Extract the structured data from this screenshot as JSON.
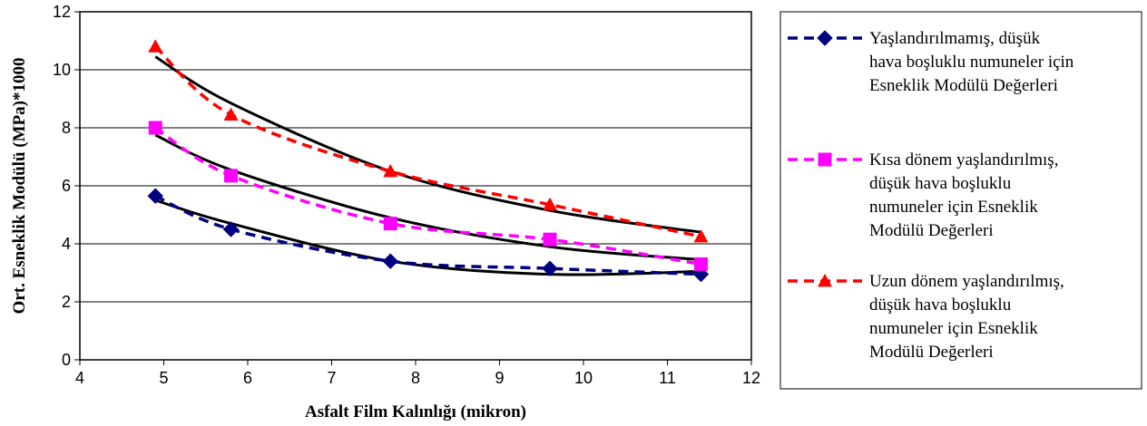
{
  "chart_data": {
    "type": "line",
    "title": "",
    "xlabel": "Asfalt Film Kalınlığı (mikron)",
    "ylabel": "Ort. Esneklik Modülü (MPa)*1000",
    "xlim": [
      4,
      12
    ],
    "ylim": [
      0,
      12
    ],
    "x_ticks": [
      "4",
      "5",
      "6",
      "7",
      "8",
      "9",
      "10",
      "11",
      "12"
    ],
    "y_ticks": [
      "0",
      "2",
      "4",
      "6",
      "8",
      "10",
      "12"
    ],
    "grid": "horizontal",
    "legend_position": "right",
    "series": [
      {
        "name": "Yaşlandırılmamış, düşük hava boşluklu numuneler için Esneklik Modülü Değerleri",
        "legend_lines": [
          "Yaşlandırılmamış, düşük",
          "hava boşluklu numuneler için",
          "Esneklik Modülü Değerleri"
        ],
        "color": "#000080",
        "marker": "diamond",
        "x": [
          4.9,
          5.8,
          7.7,
          9.6,
          11.4
        ],
        "y": [
          5.65,
          4.5,
          3.4,
          3.15,
          2.95
        ],
        "trend_y": [
          5.5,
          4.7,
          3.4,
          2.95,
          3.05
        ]
      },
      {
        "name": "Kısa dönem yaşlandırılmış, düşük hava boşluklu numuneler için Esneklik Modülü Değerleri",
        "legend_lines": [
          "Kısa dönem yaşlandırılmış,",
          "düşük hava boşluklu",
          "numuneler için Esneklik",
          "Modülü Değerleri"
        ],
        "color": "#FF00FF",
        "marker": "square",
        "x": [
          4.9,
          5.8,
          7.7,
          9.6,
          11.4
        ],
        "y": [
          8.0,
          6.35,
          4.7,
          4.15,
          3.3
        ],
        "trend_y": [
          7.75,
          6.55,
          4.9,
          3.9,
          3.45
        ]
      },
      {
        "name": "Uzun dönem yaşlandırılmış, düşük hava boşluklu numuneler için Esneklik Modülü Değerleri",
        "legend_lines": [
          "Uzun dönem yaşlandırılmış,",
          "düşük hava boşluklu",
          "numuneler için Esneklik",
          "Modülü Değerleri"
        ],
        "color": "#FF0000",
        "marker": "triangle",
        "x": [
          4.9,
          5.8,
          7.7,
          9.6,
          11.4
        ],
        "y": [
          10.8,
          8.45,
          6.5,
          5.35,
          4.25
        ],
        "trend_y": [
          10.45,
          8.85,
          6.5,
          5.15,
          4.4
        ]
      }
    ]
  }
}
